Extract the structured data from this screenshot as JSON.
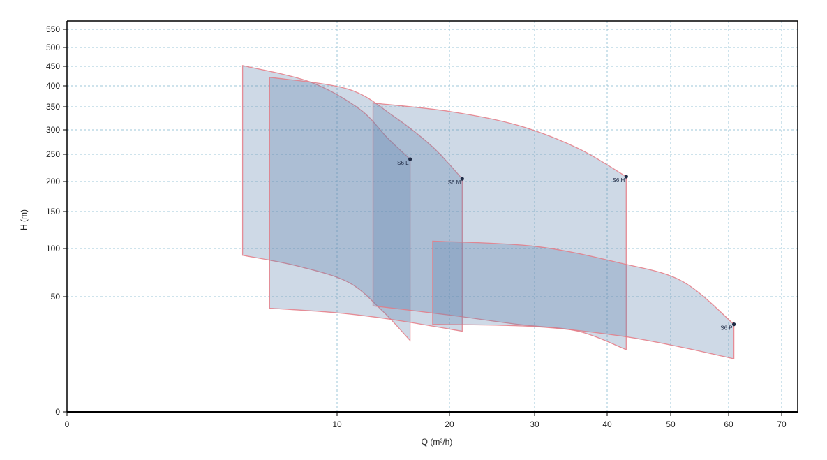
{
  "chart_data": {
    "type": "area",
    "xlabel": "Q (m³/h)",
    "ylabel": "H (m)",
    "x_ticks": [
      {
        "value": 0,
        "label": "0"
      },
      {
        "value": 10,
        "label": "10"
      },
      {
        "value": 20,
        "label": "20"
      },
      {
        "value": 30,
        "label": "30"
      },
      {
        "value": 40,
        "label": "40"
      },
      {
        "value": 50,
        "label": "50"
      },
      {
        "value": 60,
        "label": "60"
      },
      {
        "value": 70,
        "label": "70"
      }
    ],
    "y_ticks": [
      {
        "value": 0,
        "label": "0"
      },
      {
        "value": 50,
        "label": "50"
      },
      {
        "value": 100,
        "label": "100"
      },
      {
        "value": 150,
        "label": "150"
      },
      {
        "value": 200,
        "label": "200"
      },
      {
        "value": 250,
        "label": "250"
      },
      {
        "value": 300,
        "label": "300"
      },
      {
        "value": 350,
        "label": "350"
      },
      {
        "value": 400,
        "label": "400"
      },
      {
        "value": 450,
        "label": "450"
      },
      {
        "value": 500,
        "label": "500"
      },
      {
        "value": 550,
        "label": "550"
      }
    ],
    "grid": true,
    "colors": {
      "fill": "#5c82ab",
      "stroke": "#e57a85",
      "point": "#1f2a44",
      "grid": "#9cc7d8",
      "axis": "#000000"
    },
    "series": [
      {
        "name": "S6 L",
        "point": [
          16.5,
          241
        ],
        "top": [
          [
            6.5,
            452
          ],
          [
            9,
            410
          ],
          [
            12,
            345
          ],
          [
            14.5,
            283
          ],
          [
            16.5,
            241
          ]
        ],
        "right_bottom": 31,
        "bottom": [
          [
            16.5,
            31
          ],
          [
            14,
            44
          ],
          [
            11,
            65
          ],
          [
            8.5,
            82
          ],
          [
            6.5,
            93
          ]
        ]
      },
      {
        "name": "S6 M",
        "point": [
          21.5,
          205
        ],
        "top": [
          [
            7.5,
            422
          ],
          [
            11,
            392
          ],
          [
            15,
            330
          ],
          [
            18.5,
            265
          ],
          [
            21.5,
            205
          ]
        ],
        "right_bottom": 35,
        "bottom": [
          [
            21.5,
            35
          ],
          [
            15,
            40
          ],
          [
            10,
            43
          ],
          [
            7.5,
            45
          ]
        ]
      },
      {
        "name": "S6 H",
        "point": [
          43,
          209
        ],
        "top": [
          [
            13.2,
            359
          ],
          [
            20,
            340
          ],
          [
            28,
            310
          ],
          [
            36,
            262
          ],
          [
            43,
            209
          ]
        ],
        "right_bottom": 27,
        "bottom": [
          [
            43,
            27
          ],
          [
            36,
            35
          ],
          [
            28,
            38
          ],
          [
            20,
            42
          ],
          [
            13.2,
            46
          ]
        ]
      },
      {
        "name": "S6 P",
        "point": [
          61,
          38
        ],
        "top": [
          [
            18.5,
            110
          ],
          [
            30,
            103
          ],
          [
            42,
            85
          ],
          [
            52,
            66
          ],
          [
            61,
            38
          ]
        ],
        "right_bottom": 23,
        "bottom": [
          [
            61,
            23
          ],
          [
            52,
            28
          ],
          [
            42,
            33
          ],
          [
            30,
            37
          ],
          [
            18.5,
            38
          ]
        ]
      }
    ]
  }
}
